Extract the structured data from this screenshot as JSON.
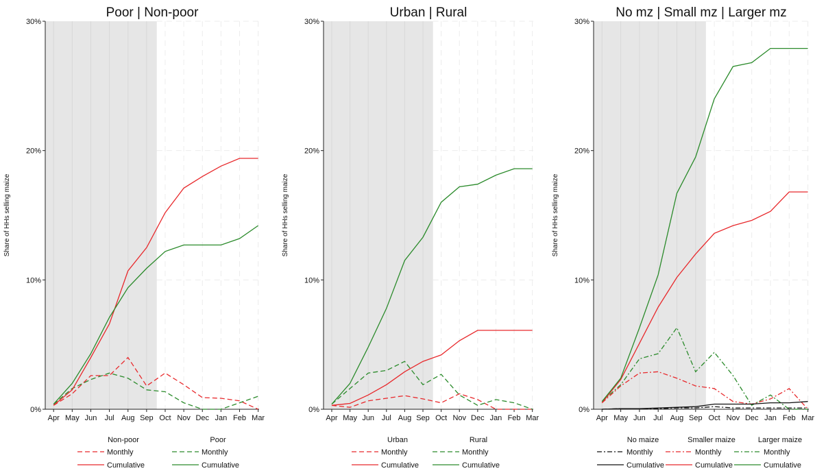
{
  "chart_data": [
    {
      "type": "line",
      "title": "Poor | Non-poor",
      "ylabel": "Share of HHs selling maize",
      "categories": [
        "Apr",
        "May",
        "Jun",
        "Jul",
        "Aug",
        "Sep",
        "Oct",
        "Nov",
        "Dec",
        "Jan",
        "Feb",
        "Mar"
      ],
      "ylim": [
        0,
        30
      ],
      "yticks": [
        "0%",
        "10%",
        "20%",
        "30%"
      ],
      "grid": true,
      "shaded_months": [
        "Apr",
        "Sep"
      ],
      "legend_groups": [
        {
          "title": "Non-poor",
          "entries": [
            "Monthly",
            "Cumulative"
          ]
        },
        {
          "title": "Poor",
          "entries": [
            "Monthly",
            "Cumulative"
          ]
        }
      ],
      "series": [
        {
          "group": "Non-poor",
          "kind": "Monthly",
          "color": "#e8282b",
          "dash": "dashed",
          "values": [
            0.3,
            1.2,
            2.6,
            2.6,
            4.0,
            1.8,
            2.8,
            1.9,
            0.9,
            0.85,
            0.65,
            0.0
          ]
        },
        {
          "group": "Non-poor",
          "kind": "Cumulative",
          "color": "#e8282b",
          "dash": "solid",
          "values": [
            0.3,
            1.5,
            4.0,
            6.6,
            10.7,
            12.5,
            15.2,
            17.1,
            18.0,
            18.8,
            19.4,
            19.4
          ]
        },
        {
          "group": "Poor",
          "kind": "Monthly",
          "color": "#2a8a2a",
          "dash": "dashed",
          "values": [
            0.4,
            1.6,
            2.3,
            2.8,
            2.4,
            1.5,
            1.35,
            0.5,
            0.0,
            0.0,
            0.5,
            1.0
          ]
        },
        {
          "group": "Poor",
          "kind": "Cumulative",
          "color": "#2a8a2a",
          "dash": "solid",
          "values": [
            0.4,
            2.0,
            4.3,
            7.1,
            9.4,
            10.9,
            12.2,
            12.7,
            12.7,
            12.7,
            13.2,
            14.2
          ]
        }
      ]
    },
    {
      "type": "line",
      "title": "Urban | Rural",
      "ylabel": "Share of HHs selling maize",
      "categories": [
        "Apr",
        "May",
        "Jun",
        "Jul",
        "Aug",
        "Sep",
        "Oct",
        "Nov",
        "Dec",
        "Jan",
        "Feb",
        "Mar"
      ],
      "ylim": [
        0,
        30
      ],
      "yticks": [
        "0%",
        "10%",
        "20%",
        "30%"
      ],
      "grid": true,
      "shaded_months": [
        "Apr",
        "Sep"
      ],
      "legend_groups": [
        {
          "title": "Urban",
          "entries": [
            "Monthly",
            "Cumulative"
          ]
        },
        {
          "title": "Rural",
          "entries": [
            "Monthly",
            "Cumulative"
          ]
        }
      ],
      "series": [
        {
          "group": "Urban",
          "kind": "Monthly",
          "color": "#e8282b",
          "dash": "dashed",
          "values": [
            0.3,
            0.15,
            0.65,
            0.85,
            1.05,
            0.8,
            0.5,
            1.2,
            0.75,
            0.0,
            0.0,
            0.0
          ]
        },
        {
          "group": "Urban",
          "kind": "Cumulative",
          "color": "#e8282b",
          "dash": "solid",
          "values": [
            0.3,
            0.45,
            1.1,
            1.9,
            2.9,
            3.7,
            4.2,
            5.3,
            6.1,
            6.1,
            6.1,
            6.1
          ]
        },
        {
          "group": "Rural",
          "kind": "Monthly",
          "color": "#2a8a2a",
          "dash": "dashed",
          "values": [
            0.4,
            1.6,
            2.8,
            3.0,
            3.7,
            1.9,
            2.7,
            1.1,
            0.3,
            0.75,
            0.5,
            0.0
          ]
        },
        {
          "group": "Rural",
          "kind": "Cumulative",
          "color": "#2a8a2a",
          "dash": "solid",
          "values": [
            0.4,
            2.0,
            4.8,
            7.8,
            11.5,
            13.3,
            16.0,
            17.2,
            17.4,
            18.1,
            18.6,
            18.6
          ]
        }
      ]
    },
    {
      "type": "line",
      "title": "No mz | Small mz | Larger mz",
      "ylabel": "Share of HHs selling maize",
      "categories": [
        "Apr",
        "May",
        "Jun",
        "Jul",
        "Aug",
        "Sep",
        "Oct",
        "Nov",
        "Dec",
        "Jan",
        "Feb",
        "Mar"
      ],
      "ylim": [
        0,
        30
      ],
      "yticks": [
        "0%",
        "10%",
        "20%",
        "30%"
      ],
      "grid": true,
      "shaded_months": [
        "Apr",
        "Sep"
      ],
      "legend_groups": [
        {
          "title": "No maize",
          "entries": [
            "Monthly",
            "Cumulative"
          ]
        },
        {
          "title": "Smaller maize",
          "entries": [
            "Monthly",
            "Cumulative"
          ]
        },
        {
          "title": "Larger maize",
          "entries": [
            "Monthly",
            "Cumulative"
          ]
        }
      ],
      "series": [
        {
          "group": "No maize",
          "kind": "Monthly",
          "color": "#111111",
          "dash": "dashdot",
          "values": [
            0.0,
            0.05,
            0.05,
            0.05,
            0.1,
            0.1,
            0.2,
            0.1,
            0.1,
            0.1,
            0.1,
            0.1
          ]
        },
        {
          "group": "No maize",
          "kind": "Cumulative",
          "color": "#111111",
          "dash": "solid",
          "values": [
            0.0,
            0.05,
            0.05,
            0.1,
            0.15,
            0.2,
            0.4,
            0.4,
            0.4,
            0.5,
            0.5,
            0.6
          ]
        },
        {
          "group": "Smaller maize",
          "kind": "Monthly",
          "color": "#e8282b",
          "dash": "dashdot",
          "values": [
            0.5,
            1.8,
            2.8,
            2.9,
            2.4,
            1.8,
            1.6,
            0.6,
            0.4,
            0.8,
            1.6,
            0.0
          ]
        },
        {
          "group": "Smaller maize",
          "kind": "Cumulative",
          "color": "#e8282b",
          "dash": "solid",
          "values": [
            0.5,
            2.3,
            5.1,
            7.9,
            10.2,
            12.0,
            13.6,
            14.2,
            14.6,
            15.3,
            16.8,
            16.8
          ]
        },
        {
          "group": "Larger maize",
          "kind": "Monthly",
          "color": "#2a8a2a",
          "dash": "dashdot",
          "values": [
            0.6,
            1.9,
            3.9,
            4.3,
            6.3,
            2.9,
            4.4,
            2.6,
            0.3,
            1.1,
            0.0,
            0.0
          ]
        },
        {
          "group": "Larger maize",
          "kind": "Cumulative",
          "color": "#2a8a2a",
          "dash": "solid",
          "values": [
            0.6,
            2.4,
            6.3,
            10.4,
            16.7,
            19.5,
            24.0,
            26.5,
            26.8,
            27.9,
            27.9,
            27.9
          ]
        }
      ]
    }
  ]
}
